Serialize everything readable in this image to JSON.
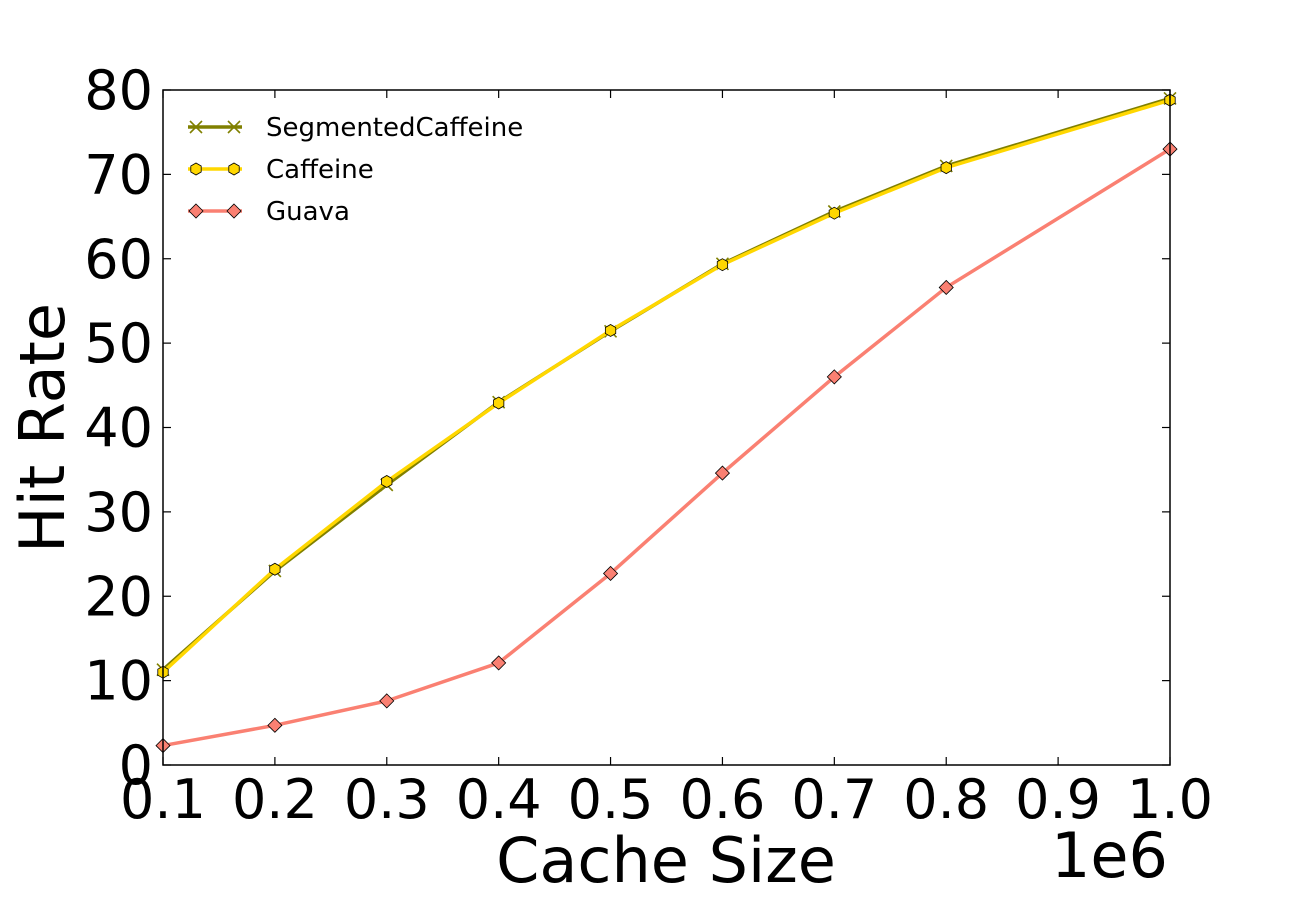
{
  "chart_data": {
    "type": "line",
    "xlabel": "Cache Size",
    "ylabel": "Hit Rate",
    "x_offset_label": "1e6",
    "xlim": [
      0.1,
      1.0
    ],
    "ylim": [
      0,
      80
    ],
    "x_ticks": [
      "0.1",
      "0.2",
      "0.3",
      "0.4",
      "0.5",
      "0.6",
      "0.7",
      "0.8",
      "0.9",
      "1.0"
    ],
    "y_ticks": [
      "0",
      "10",
      "20",
      "30",
      "40",
      "50",
      "60",
      "70",
      "80"
    ],
    "grid": false,
    "legend_position": "top-left",
    "series": [
      {
        "name": "SegmentedCaffeine",
        "color": "#808000",
        "marker": "x",
        "x": [
          0.1,
          0.2,
          0.3,
          0.4,
          0.5,
          0.6,
          0.7,
          0.8,
          1.0
        ],
        "y": [
          11.3,
          23.0,
          33.2,
          43.0,
          51.4,
          59.4,
          65.6,
          71.0,
          79.0
        ]
      },
      {
        "name": "Caffeine",
        "color": "#FFD700",
        "marker": "hexagon",
        "x": [
          0.1,
          0.2,
          0.3,
          0.4,
          0.5,
          0.6,
          0.7,
          0.8,
          1.0
        ],
        "y": [
          11.0,
          23.2,
          33.6,
          42.9,
          51.5,
          59.3,
          65.4,
          70.8,
          78.8
        ]
      },
      {
        "name": "Guava",
        "color": "#FA8072",
        "marker": "diamond",
        "x": [
          0.1,
          0.2,
          0.3,
          0.4,
          0.5,
          0.6,
          0.7,
          0.8,
          1.0
        ],
        "y": [
          2.3,
          4.7,
          7.6,
          12.1,
          22.7,
          34.6,
          46.0,
          56.6,
          73.0
        ]
      }
    ]
  }
}
